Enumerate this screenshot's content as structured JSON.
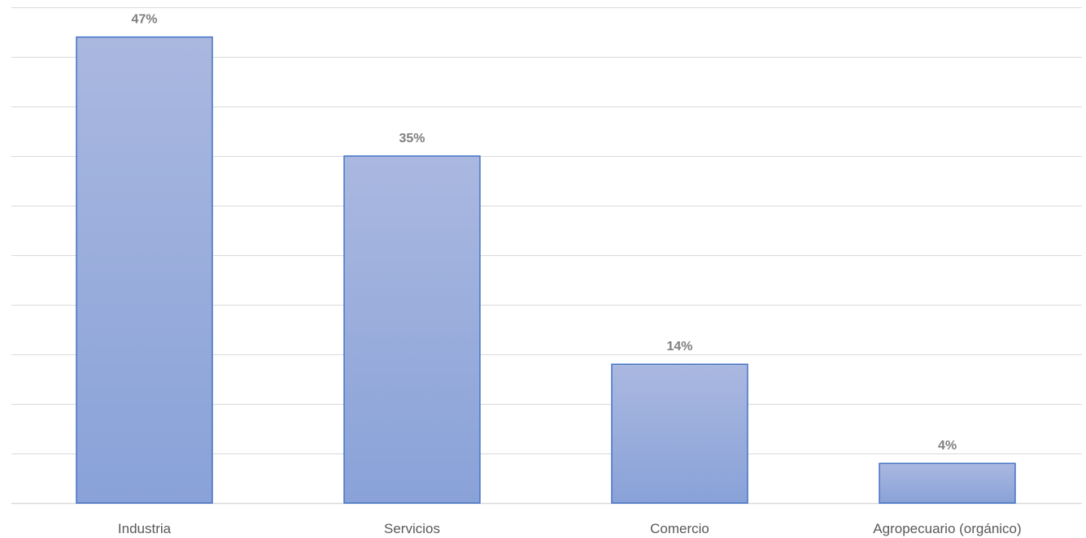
{
  "chart_data": {
    "type": "bar",
    "title": "",
    "xlabel": "",
    "ylabel": "",
    "categories": [
      "Industria",
      "Servicios",
      "Comercio",
      "Agropecuario (orgánico)"
    ],
    "values": [
      47,
      35,
      14,
      4
    ],
    "value_labels": [
      "47%",
      "35%",
      "14%",
      "4%"
    ],
    "unit": "%",
    "ylim": [
      0,
      50
    ],
    "ytick_step": 5,
    "grid": true,
    "legend": "none",
    "colors": {
      "bar_fill_top": "#aab8e0",
      "bar_fill_bottom": "#89a2d8",
      "bar_stroke": "#4472c4",
      "grid": "#d9d9d9",
      "data_label": "#7f7f7f",
      "axis_label": "#595959"
    }
  }
}
